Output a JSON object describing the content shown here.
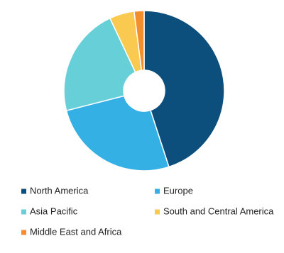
{
  "chart_data": {
    "type": "donut",
    "categories": [
      "North America",
      "Europe",
      "Asia Pacific",
      "South and Central America",
      "Middle East and Africa"
    ],
    "values": [
      45,
      26,
      22,
      5,
      2
    ],
    "colors": [
      "#0d4f7c",
      "#35b0e5",
      "#66cfd8",
      "#fac94f",
      "#f28e2b"
    ]
  }
}
